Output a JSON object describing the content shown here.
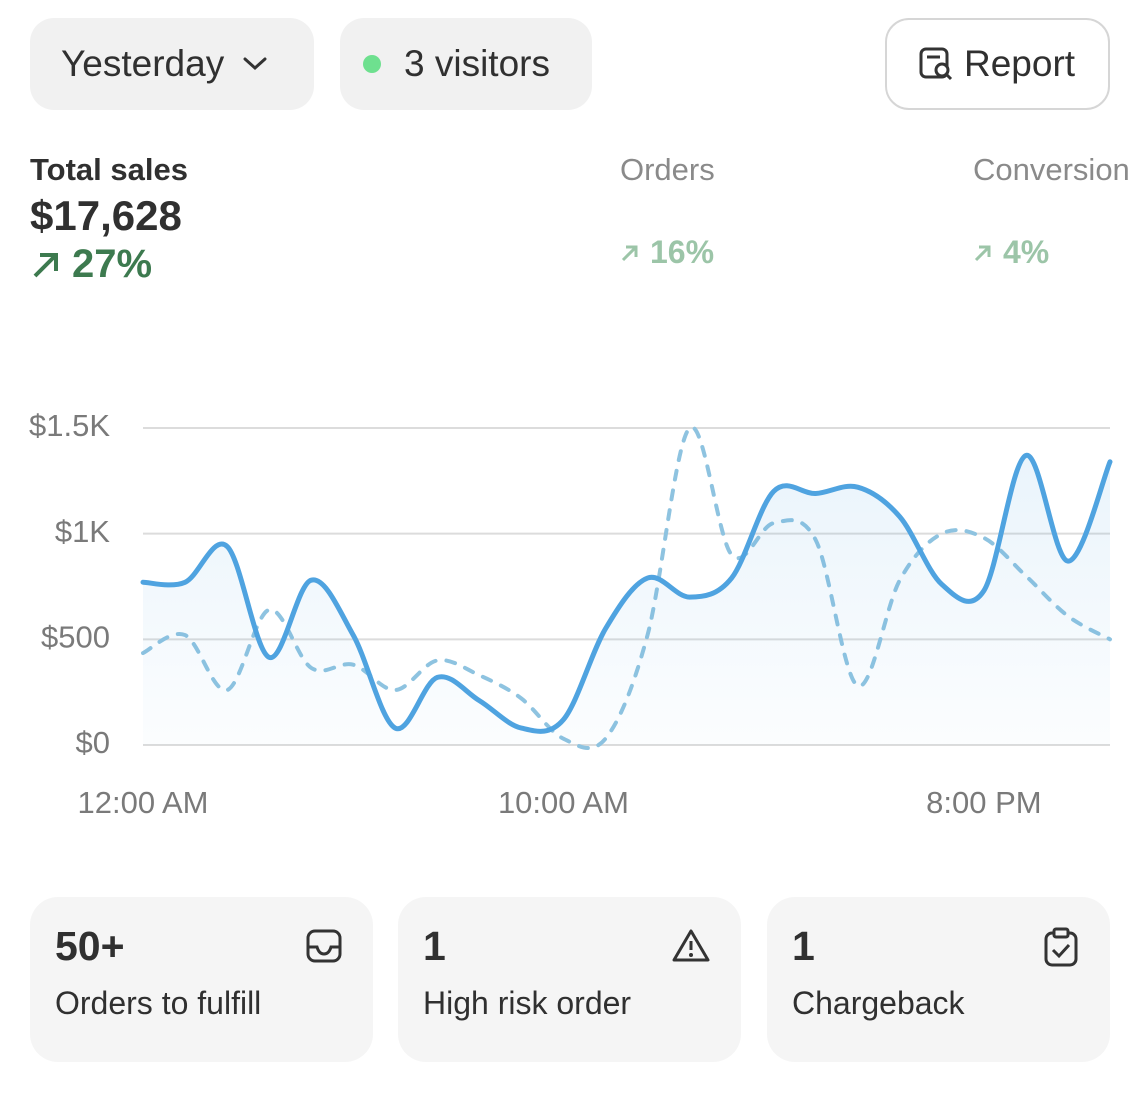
{
  "header": {
    "date_button": "Yesterday",
    "visitors_button": "3 visitors",
    "report_button": "Report"
  },
  "metrics": [
    {
      "label": "Total sales",
      "value": "$17,628",
      "change": "27%"
    },
    {
      "label": "Orders",
      "change": "16%"
    },
    {
      "label": "Conversion",
      "change": "4%"
    }
  ],
  "chart_data": {
    "type": "line",
    "categories": [
      "12:00 AM",
      null,
      null,
      null,
      null,
      null,
      null,
      null,
      null,
      null,
      "10:00 AM",
      null,
      null,
      null,
      null,
      null,
      null,
      null,
      null,
      null,
      "8:00 PM",
      null,
      null,
      null
    ],
    "series": [
      {
        "color": "#4fa3e0",
        "style": "solid",
        "area": true,
        "values": [
          770,
          770,
          940,
          415,
          780,
          520,
          80,
          320,
          210,
          80,
          120,
          550,
          790,
          700,
          790,
          1200,
          1190,
          1220,
          1080,
          760,
          730,
          1370,
          870,
          1340
        ]
      },
      {
        "color": "#8ec3e0",
        "style": "dashed",
        "values": [
          435,
          520,
          260,
          640,
          365,
          380,
          260,
          400,
          330,
          220,
          30,
          30,
          520,
          1500,
          900,
          1050,
          970,
          280,
          780,
          1000,
          980,
          800,
          610,
          500
        ]
      }
    ],
    "ylim": [
      0,
      1500
    ],
    "yticks": [
      {
        "value": 0,
        "label": "$0"
      },
      {
        "value": 500,
        "label": "$500"
      },
      {
        "value": 1000,
        "label": "$1K"
      },
      {
        "value": 1500,
        "label": "$1.5K"
      }
    ],
    "grid": true
  },
  "cards": [
    {
      "value": "50+",
      "label": "Orders to fulfill"
    },
    {
      "value": "1",
      "label": "High risk order"
    },
    {
      "value": "1",
      "label": "Chargeback"
    }
  ]
}
